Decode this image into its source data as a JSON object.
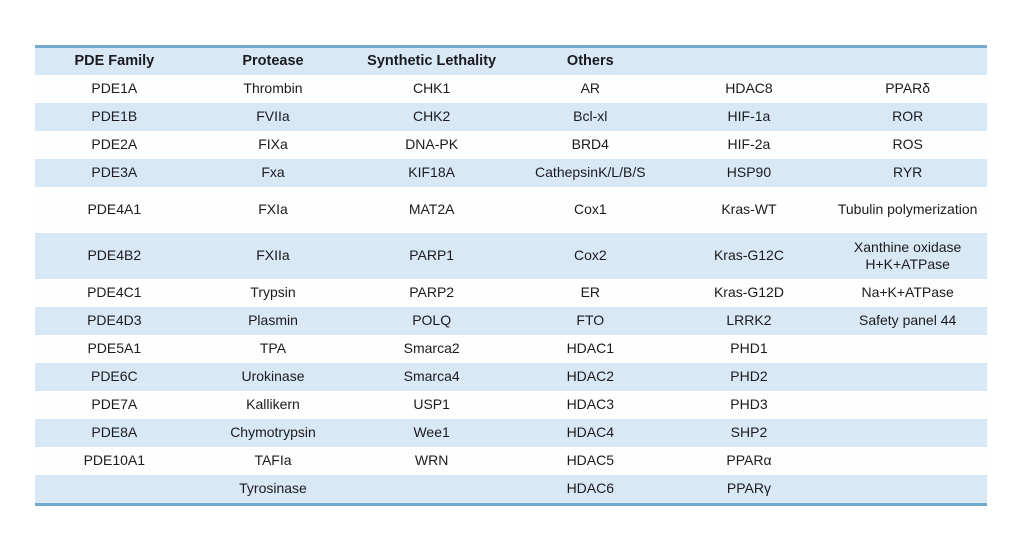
{
  "colors": {
    "band_blue": "#D9E8F5",
    "border_blue": "#74A9CE",
    "text": "#1B1B1F",
    "row_white": "#FEFEFE"
  },
  "table": {
    "headers": [
      "PDE Family",
      "Protease",
      "Synthetic Lethality",
      "Others",
      "",
      ""
    ],
    "rows": [
      {
        "cells": [
          "PDE1A",
          "Thrombin",
          "CHK1",
          "AR",
          "HDAC8",
          "PPARδ"
        ]
      },
      {
        "cells": [
          "PDE1B",
          "FVIIa",
          "CHK2",
          "Bcl-xl",
          "HIF-1a",
          "ROR"
        ]
      },
      {
        "cells": [
          "PDE2A",
          "FIXa",
          "DNA-PK",
          "BRD4",
          "HIF-2a",
          "ROS"
        ]
      },
      {
        "cells": [
          "PDE3A",
          "Fxa",
          "KIF18A",
          "CathepsinK/L/B/S",
          "HSP90",
          "RYR"
        ]
      },
      {
        "cells": [
          "PDE4A1",
          "FXIa",
          "MAT2A",
          "Cox1",
          "Kras-WT",
          "Tubulin polymerization"
        ]
      },
      {
        "cells": [
          "PDE4B2",
          "FXIIa",
          "PARP1",
          "Cox2",
          "Kras-G12C",
          "Xanthine oxidase\nH+K+ATPase"
        ]
      },
      {
        "cells": [
          "PDE4C1",
          "Trypsin",
          "PARP2",
          "ER",
          "Kras-G12D",
          "Na+K+ATPase"
        ]
      },
      {
        "cells": [
          "PDE4D3",
          "Plasmin",
          "POLQ",
          "FTO",
          "LRRK2",
          "Safety panel 44"
        ]
      },
      {
        "cells": [
          "PDE5A1",
          "TPA",
          "Smarca2",
          "HDAC1",
          "PHD1",
          ""
        ]
      },
      {
        "cells": [
          "PDE6C",
          "Urokinase",
          "Smarca4",
          "HDAC2",
          "PHD2",
          ""
        ]
      },
      {
        "cells": [
          "PDE7A",
          "Kallikern",
          "USP1",
          "HDAC3",
          "PHD3",
          ""
        ]
      },
      {
        "cells": [
          "PDE8A",
          "Chymotrypsin",
          "Wee1",
          "HDAC4",
          "SHP2",
          ""
        ]
      },
      {
        "cells": [
          "PDE10A1",
          "TAFIa",
          "WRN",
          "HDAC5",
          "PPARα",
          ""
        ]
      },
      {
        "cells": [
          "",
          "Tyrosinase",
          "",
          "HDAC6",
          "PPARγ",
          ""
        ]
      }
    ]
  }
}
